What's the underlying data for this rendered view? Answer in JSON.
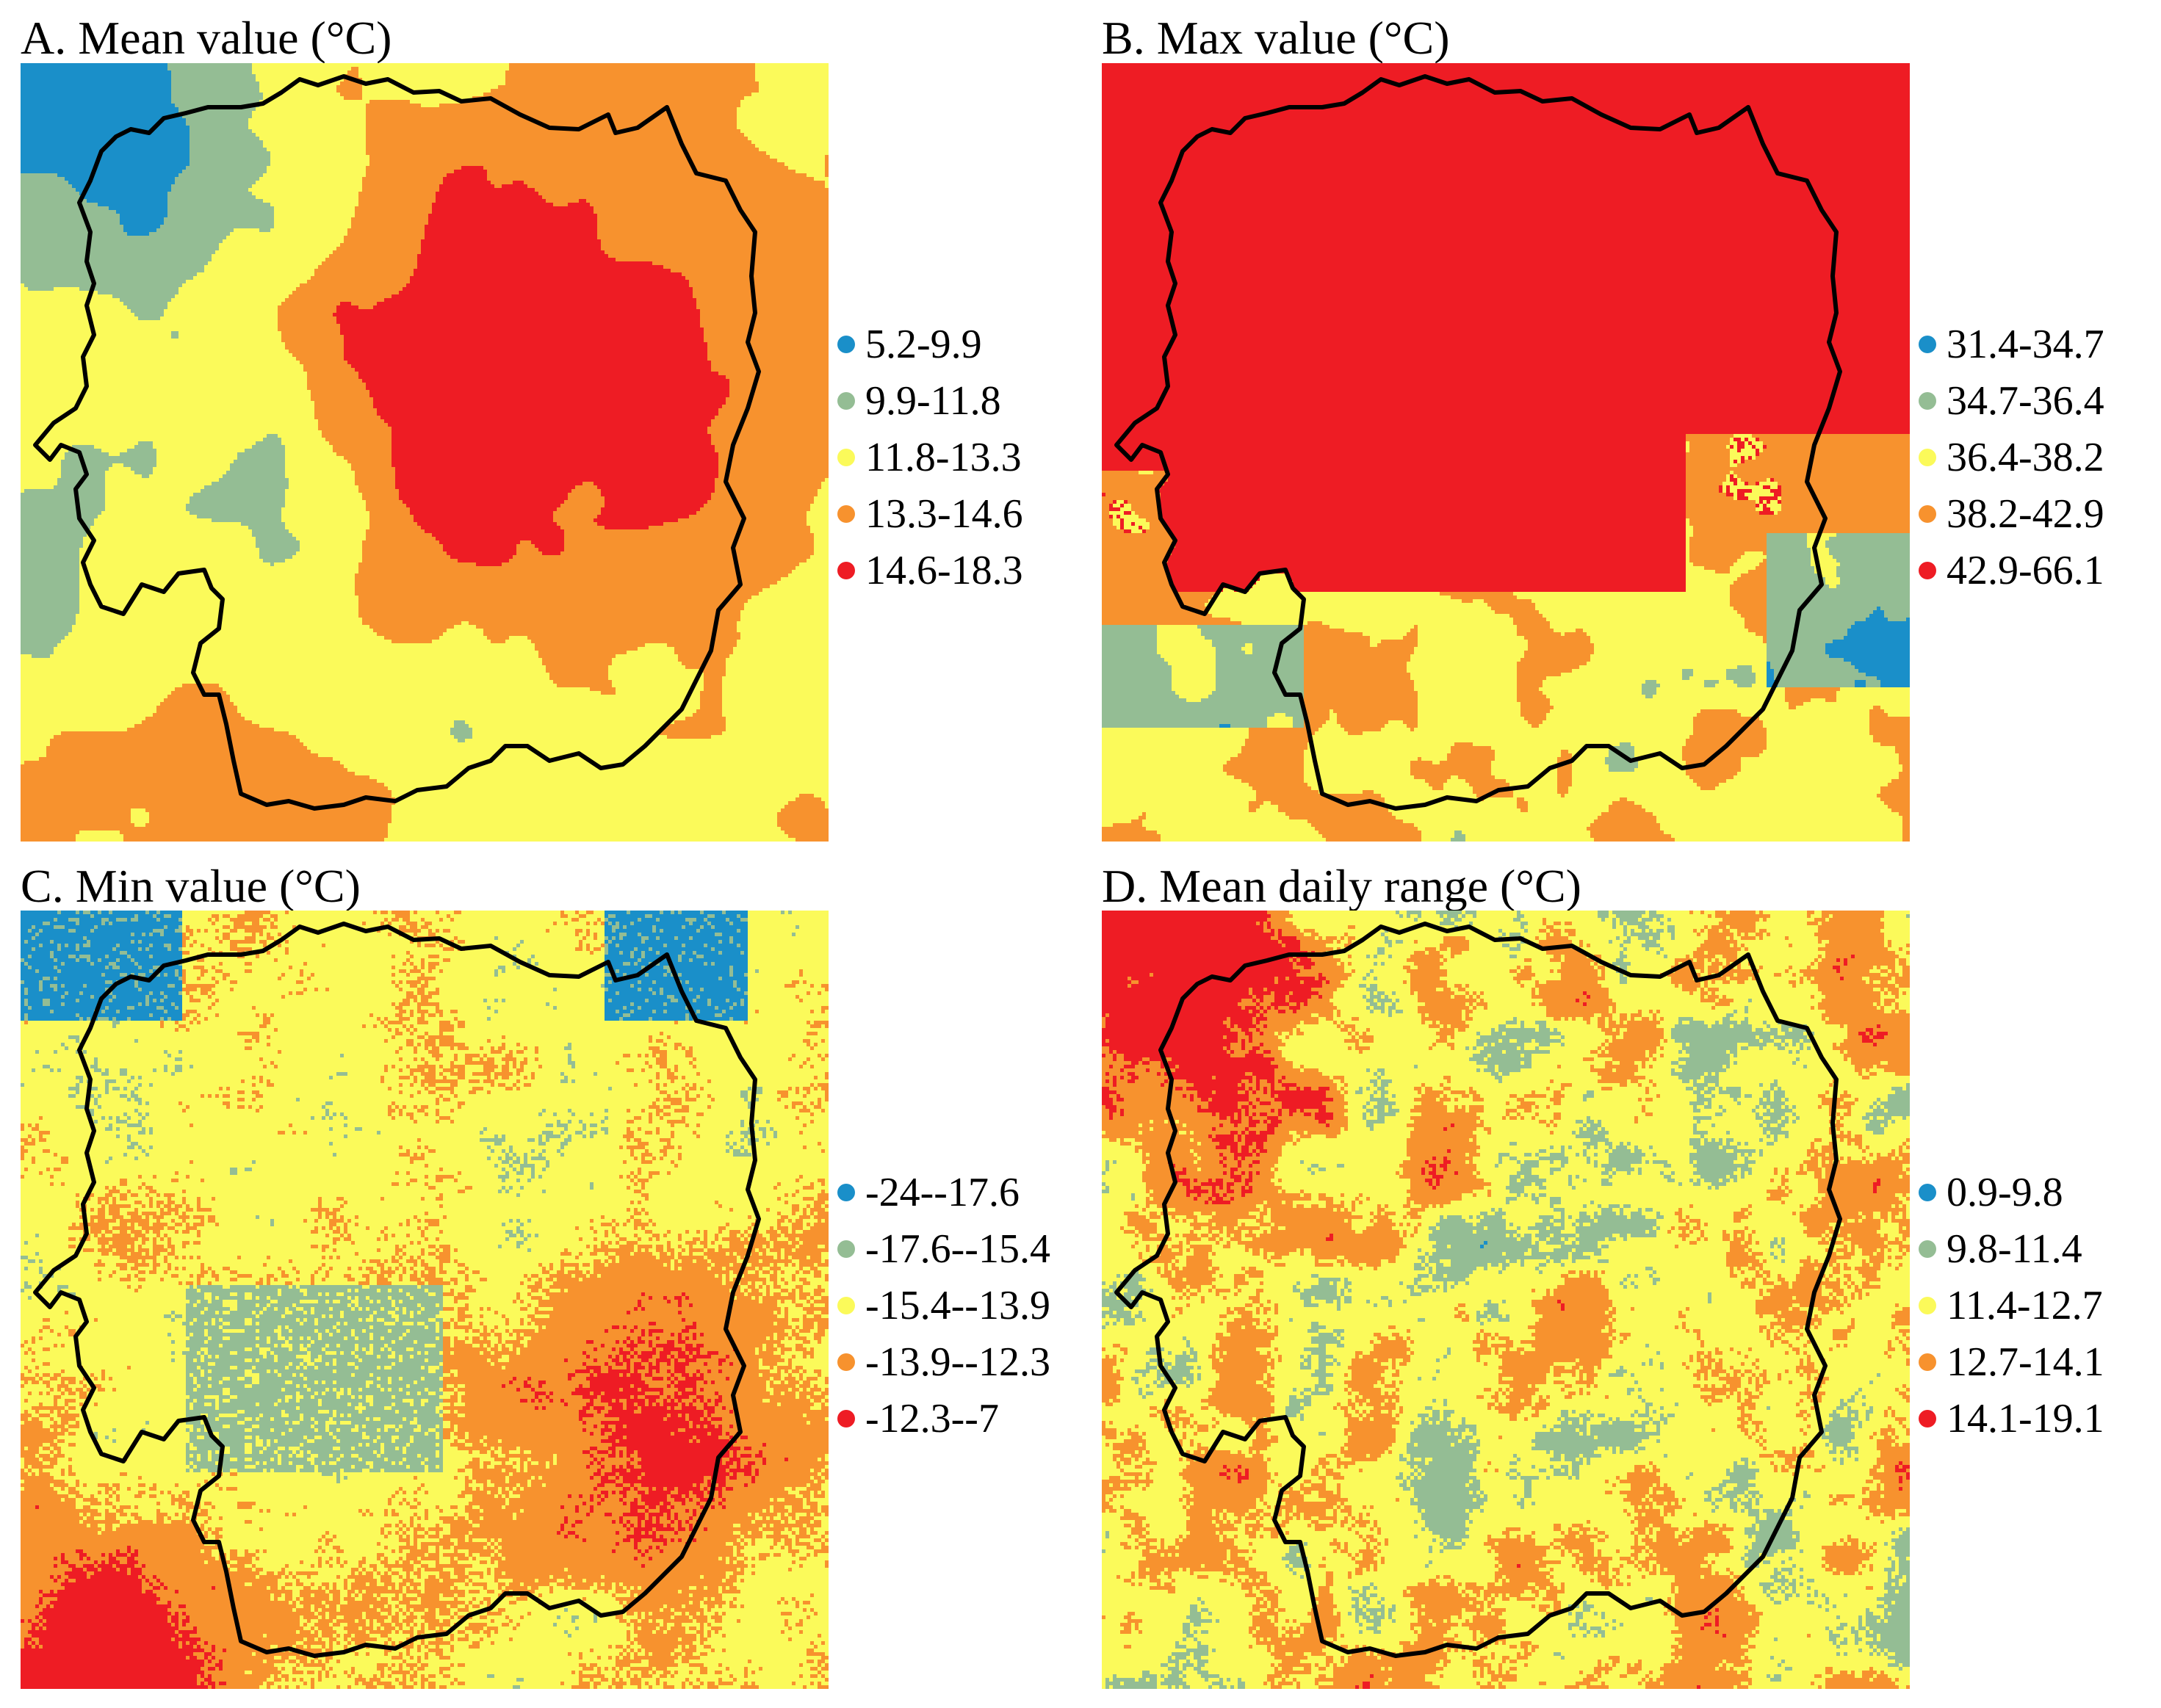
{
  "palette": {
    "blue": "#1a8fc9",
    "green": "#94bd94",
    "yellow": "#fbfa5a",
    "orange": "#f7922e",
    "red": "#ee1c24",
    "boundary": "#000000"
  },
  "panels": [
    {
      "title": "A. Mean value (°C)",
      "legend": [
        {
          "label": "5.2-9.9",
          "color": "#1a8fc9"
        },
        {
          "label": "9.9-11.8",
          "color": "#94bd94"
        },
        {
          "label": "11.8-13.3",
          "color": "#fbfa5a"
        },
        {
          "label": "13.3-14.6",
          "color": "#f7922e"
        },
        {
          "label": "14.6-18.3",
          "color": "#ee1c24"
        }
      ]
    },
    {
      "title": "B. Max value (°C)",
      "legend": [
        {
          "label": "31.4-34.7",
          "color": "#1a8fc9"
        },
        {
          "label": "34.7-36.4",
          "color": "#94bd94"
        },
        {
          "label": "36.4-38.2",
          "color": "#fbfa5a"
        },
        {
          "label": "38.2-42.9",
          "color": "#f7922e"
        },
        {
          "label": "42.9-66.1",
          "color": "#ee1c24"
        }
      ]
    },
    {
      "title": "C. Min value (°C)",
      "legend": [
        {
          "label": "-24--17.6",
          "color": "#1a8fc9"
        },
        {
          "label": "-17.6--15.4",
          "color": "#94bd94"
        },
        {
          "label": "-15.4--13.9",
          "color": "#fbfa5a"
        },
        {
          "label": "-13.9--12.3",
          "color": "#f7922e"
        },
        {
          "label": "-12.3--7",
          "color": "#ee1c24"
        }
      ]
    },
    {
      "title": "D. Mean daily range (°C)",
      "legend": [
        {
          "label": "0.9-9.8",
          "color": "#1a8fc9"
        },
        {
          "label": "9.8-11.4",
          "color": "#94bd94"
        },
        {
          "label": "11.4-12.7",
          "color": "#fbfa5a"
        },
        {
          "label": "12.7-14.1",
          "color": "#f7922e"
        },
        {
          "label": "14.1-19.1",
          "color": "#ee1c24"
        }
      ]
    }
  ]
}
